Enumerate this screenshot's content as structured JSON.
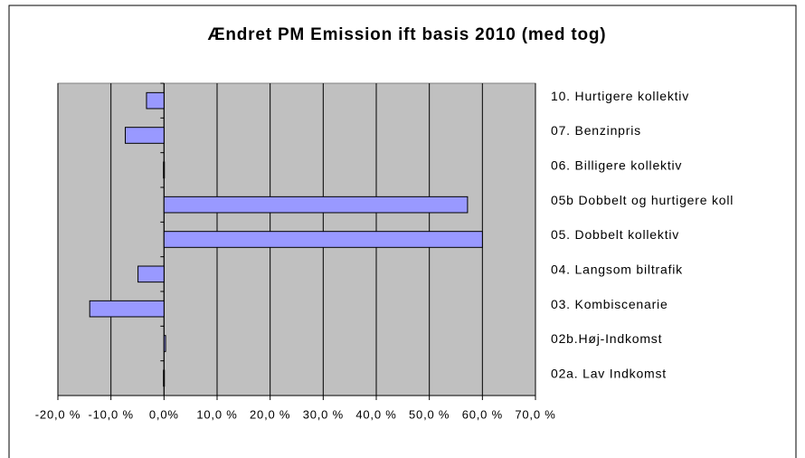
{
  "chart_data": {
    "type": "barh",
    "title": "Ændret PM Emission ift basis 2010 (med tog)",
    "categories": [
      "10. Hurtigere kollektiv",
      "07. Benzinpris",
      "06. Billigere kollektiv",
      "05b Dobbelt og hurtigere koll",
      "05. Dobbelt kollektiv",
      "04. Langsom biltrafik",
      "03. Kombiscenarie",
      "02b.Høj-Indkomst",
      "02a. Lav Indkomst"
    ],
    "values": [
      -3.3,
      -7.3,
      -0.1,
      57.2,
      60.0,
      -4.9,
      -14.0,
      0.3,
      -0.1
    ],
    "color": "#9999ff",
    "xlim": [
      -20,
      70
    ],
    "xticks": [
      {
        "value": -20,
        "label": "-20,0 %"
      },
      {
        "value": -10,
        "label": "-10,0 %"
      },
      {
        "value": 0,
        "label": "0,0%"
      },
      {
        "value": 10,
        "label": "10,0 %"
      },
      {
        "value": 20,
        "label": "20,0 %"
      },
      {
        "value": 30,
        "label": "30,0 %"
      },
      {
        "value": 40,
        "label": "40,0 %"
      },
      {
        "value": 50,
        "label": "50,0 %"
      },
      {
        "value": 60,
        "label": "60,0 %"
      },
      {
        "value": 70,
        "label": "70,0 %"
      }
    ],
    "grid": true
  }
}
